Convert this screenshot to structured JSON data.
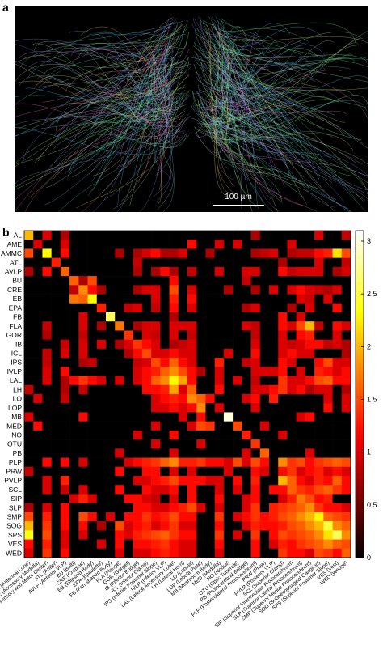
{
  "panel_a": {
    "label": "a",
    "scale_bar_label": "100 µm"
  },
  "chart_data": {
    "type": "heatmap",
    "panel_label": "b",
    "colormap": "hot",
    "y_categories": [
      "AL",
      "AME",
      "AMMC",
      "ATL",
      "AVLP",
      "BU",
      "CRE",
      "EB",
      "EPA",
      "FB",
      "FLA",
      "GOR",
      "IB",
      "ICL",
      "IPS",
      "IVLP",
      "LAL",
      "LH",
      "LO",
      "LOP",
      "MB",
      "MED",
      "NO",
      "OTU",
      "PB",
      "PLP",
      "PRW",
      "PVLP",
      "SCL",
      "SIP",
      "SLP",
      "SMP",
      "SOG",
      "SPS",
      "VES",
      "WED"
    ],
    "x_categories": [
      "AL (Antennal Lobe)",
      "AME (Accessory Medulla)",
      "AMMC (Antennal Mechanosensory and Motor Center)",
      "ATL (Antler)",
      "AVLP (Anterior VLP)",
      "BU (Bulb)",
      "CRE (Crepine)",
      "EB (Ellipsoid Body)",
      "EPA (Epaulette)",
      "FB (Fan-shaped Body)",
      "FLA (Flange)",
      "GOR (Gorget)",
      "IB (Inferior Bridge)",
      "ICL (Inferior Clamp)",
      "IPS (Inferior Posterior Slope)",
      "IVLP (Inferior VLP)",
      "LAL (Lateral Accessory Lobe)",
      "LH (Lateral Horn)",
      "LO (Lobula)",
      "LOP (Lobula Plate)",
      "MB (Mushroom Body)",
      "MED (Medulla)",
      "NO (Noduli)",
      "OTU (Optic Tubercle)",
      "PB (Protocerebral Bridge)",
      "PLP (Posterolateral Protocerebrum)",
      "PRW (Prow)",
      "PVLP (Posterior VLP)",
      "SCL (Superior Clamp)",
      "SIP (Superior Intermediate Protocerebrum)",
      "SLP (Superior Lateral Protocerebrum)",
      "SMP (Superior Medial Protocerebrum)",
      "SOG (Suboesophageal Ganglion)",
      "SPS (Superior Posterior Slope)",
      "VES (Vest)",
      "WED (Wedge)"
    ],
    "zlim": [
      0,
      3.1
    ],
    "zticks": [
      0,
      0.5,
      1,
      1.5,
      2,
      2.5,
      3
    ],
    "z": [
      [
        2.0,
        0,
        1.0,
        0,
        0.8,
        0,
        0,
        0,
        0,
        0,
        0,
        0,
        0,
        0,
        0,
        0,
        0,
        0,
        0,
        0,
        0,
        0,
        0,
        0,
        0,
        0.8,
        0,
        0,
        0,
        0,
        0,
        0,
        1.0,
        0,
        0,
        0.9
      ],
      [
        0,
        1.0,
        0,
        0,
        1.0,
        0,
        0,
        0,
        0,
        0,
        0,
        0,
        0,
        0,
        0,
        0,
        0,
        0,
        1.2,
        0,
        0,
        1.0,
        0,
        1.0,
        0,
        0,
        0,
        0,
        0,
        1.0,
        0,
        0,
        0,
        0,
        0,
        0
      ],
      [
        1.5,
        0,
        2.3,
        0,
        1.2,
        0,
        0,
        0,
        0,
        0,
        0.8,
        0,
        0.8,
        1.0,
        1.2,
        0.8,
        0.8,
        1.0,
        0,
        0,
        0.8,
        0,
        0,
        0,
        0,
        0.8,
        0.9,
        1.0,
        0,
        0.8,
        0.9,
        0.9,
        1.2,
        1.3,
        2.2,
        1.5
      ],
      [
        0,
        0,
        0,
        1.3,
        0,
        0,
        0,
        0,
        0,
        0,
        0,
        0,
        0.9,
        0,
        0,
        0,
        0,
        0,
        0,
        0,
        0,
        0,
        0,
        0,
        0,
        0,
        0,
        0,
        0.8,
        0,
        0,
        0,
        1.0,
        0,
        0,
        0.9
      ],
      [
        0.8,
        0,
        1.2,
        0,
        1.6,
        0,
        0,
        0,
        0,
        0,
        0,
        0,
        0.8,
        0,
        0.8,
        1.2,
        0.8,
        0,
        0.9,
        0,
        0,
        1.0,
        0,
        0,
        1.0,
        1.0,
        0,
        0,
        1.2,
        0.9,
        1.0,
        1.0,
        1.0,
        0,
        0.8,
        1.0
      ],
      [
        0,
        0,
        0,
        0,
        0,
        1.6,
        0.8,
        1.5,
        0,
        0,
        0,
        0,
        0,
        0,
        0,
        0,
        1.2,
        0,
        0,
        0,
        0,
        0,
        0,
        0,
        0.9,
        0,
        0,
        0,
        0,
        0,
        0,
        0,
        0,
        0,
        0,
        0
      ],
      [
        0,
        0,
        0,
        0,
        0,
        0.9,
        1.8,
        1.2,
        0.8,
        0,
        0,
        0,
        0.8,
        1.0,
        1.0,
        0,
        1.5,
        0,
        1.0,
        0,
        0,
        0,
        0.8,
        0,
        0,
        0.8,
        0,
        1.0,
        0,
        1.0,
        1.2,
        1.0,
        0.9,
        0.8,
        1.0,
        0
      ],
      [
        0,
        0,
        0,
        0,
        0,
        1.7,
        1.6,
        2.3,
        0,
        0,
        0,
        0,
        0,
        0,
        1.0,
        0,
        1.3,
        0,
        1.2,
        0,
        0,
        0,
        0,
        0,
        0,
        0,
        0,
        0,
        0,
        0,
        1.0,
        0.9,
        0,
        1.0,
        0,
        0
      ],
      [
        0,
        0,
        0,
        0,
        0,
        0,
        0,
        0,
        1.3,
        0,
        0,
        0.9,
        1.0,
        0,
        0.9,
        0,
        1.2,
        0,
        1.0,
        0,
        0,
        0,
        0,
        0,
        0.8,
        1.0,
        0,
        0,
        0,
        0.8,
        0,
        1.0,
        0,
        0,
        1.2,
        0
      ],
      [
        0,
        0,
        0,
        0,
        0,
        0,
        1.0,
        0,
        0,
        2.6,
        0,
        0,
        0,
        0,
        0,
        0,
        0.8,
        0,
        0,
        0,
        0,
        0,
        0,
        0,
        0,
        0,
        0,
        0,
        1.2,
        0,
        1.0,
        0,
        0,
        0,
        0,
        0
      ],
      [
        0,
        0,
        0.9,
        0,
        0,
        0,
        1.0,
        0,
        0.8,
        0,
        1.7,
        0,
        0.8,
        1.0,
        1.0,
        0,
        1.0,
        1.0,
        1.0,
        0,
        0,
        0,
        0,
        0,
        1.0,
        0.9,
        0,
        0,
        1.2,
        1.0,
        1.5,
        2.0,
        0.9,
        0,
        1.2,
        1.0
      ],
      [
        0,
        0,
        0.8,
        0,
        0,
        0,
        0.9,
        0,
        0,
        0,
        0,
        1.4,
        0,
        1.0,
        0.9,
        0,
        1.0,
        0,
        0.9,
        0,
        0,
        0,
        0,
        0,
        0,
        0.9,
        0,
        0,
        1.0,
        0,
        1.2,
        1.3,
        0,
        0,
        1.0,
        0
      ],
      [
        0,
        0,
        0,
        0,
        0.9,
        0,
        1.0,
        0,
        1.0,
        0,
        0.8,
        1.0,
        1.4,
        1.2,
        1.0,
        0,
        0.8,
        0.9,
        1.0,
        0,
        0,
        0,
        0,
        0,
        0,
        1.0,
        0,
        0,
        1.0,
        0.9,
        1.0,
        1.2,
        1.2,
        0.9,
        1.0,
        0.8
      ],
      [
        0,
        0,
        0.9,
        0,
        1.0,
        0,
        1.0,
        0,
        0,
        0,
        0,
        0.8,
        1.2,
        1.5,
        1.0,
        1.0,
        1.2,
        1.0,
        1.0,
        0,
        0,
        0,
        1.0,
        0,
        0,
        1.2,
        0,
        0,
        1.0,
        1.2,
        1.0,
        1.0,
        0,
        0,
        0,
        0.8
      ],
      [
        0,
        0,
        0.9,
        0,
        0,
        0,
        0.8,
        0.9,
        0,
        0,
        0,
        0,
        0.9,
        1.0,
        1.5,
        1.2,
        1.6,
        1.2,
        1.0,
        0,
        0,
        1.3,
        0,
        0,
        0.9,
        1.0,
        0,
        0,
        1.2,
        1.0,
        0,
        0,
        1.2,
        1.5,
        1.0,
        1.0
      ],
      [
        0,
        0,
        1.0,
        0,
        1.2,
        0,
        0,
        0,
        0,
        0,
        0,
        0,
        1.0,
        1.2,
        1.3,
        1.6,
        1.8,
        1.5,
        1.2,
        0.8,
        0,
        1.0,
        0,
        0,
        0,
        1.0,
        1.0,
        1.0,
        1.2,
        0,
        1.0,
        0,
        1.3,
        1.2,
        1.0,
        1.2
      ],
      [
        0,
        0,
        1.0,
        0,
        0.8,
        1.2,
        1.4,
        1.2,
        1.0,
        0,
        1.0,
        0,
        1.0,
        1.2,
        1.6,
        1.8,
        2.3,
        1.9,
        1.2,
        0,
        0,
        1.0,
        0,
        1.0,
        0,
        0.9,
        0,
        0,
        1.4,
        1.0,
        1.0,
        1.2,
        1.5,
        1.6,
        1.2,
        1.2
      ],
      [
        0.9,
        0,
        0,
        0,
        0.8,
        0,
        0.9,
        0,
        0,
        0,
        0,
        0,
        0,
        1.2,
        1.2,
        1.3,
        1.9,
        1.0,
        1.6,
        0,
        0,
        1.2,
        0,
        0,
        0,
        1.0,
        1.0,
        1.2,
        1.4,
        1.0,
        1.2,
        0.8,
        1.0,
        1.0,
        0,
        0.8
      ],
      [
        0,
        1.0,
        0,
        0,
        0.9,
        0,
        0,
        0,
        0,
        0,
        0,
        0,
        0,
        0,
        1.0,
        1.2,
        1.3,
        1.2,
        1.8,
        1.6,
        1.2,
        0,
        0,
        0,
        1.0,
        1.2,
        0,
        1.3,
        0,
        0,
        0,
        0,
        0,
        1.0,
        0,
        1.0
      ],
      [
        0,
        0,
        0,
        0,
        0,
        0,
        0,
        0,
        0,
        0,
        0,
        0,
        0,
        0,
        1.0,
        1.0,
        1.2,
        1.0,
        1.2,
        1.8,
        0,
        1.0,
        0,
        0,
        0,
        1.0,
        0,
        0,
        0,
        0,
        0,
        0,
        0,
        1.2,
        0,
        1.0
      ],
      [
        1.0,
        0,
        0,
        0,
        0,
        0,
        1.2,
        0,
        0,
        0,
        0,
        0,
        0,
        0,
        0,
        0,
        0,
        1.0,
        0,
        1.2,
        0,
        0,
        3.0,
        0,
        0,
        0,
        0,
        0,
        0,
        0,
        1.0,
        1.2,
        0,
        0,
        0,
        0
      ],
      [
        0,
        1.2,
        0,
        0,
        0,
        0,
        0,
        0,
        0,
        0,
        0,
        0,
        0,
        0,
        1.0,
        0,
        0,
        0,
        1.0,
        1.5,
        1.4,
        0,
        0,
        1.5,
        0,
        0,
        1.0,
        0,
        0,
        0,
        0,
        0,
        0,
        0,
        0,
        0
      ],
      [
        0,
        0,
        0,
        0,
        0,
        0,
        0,
        0,
        0,
        0,
        0,
        0,
        1.0,
        0,
        0,
        0,
        1.2,
        0,
        0,
        0,
        0,
        0,
        0,
        0,
        1.3,
        0,
        0,
        0,
        1.0,
        0,
        0,
        0,
        0,
        0,
        0,
        0
      ],
      [
        0,
        0,
        0,
        0,
        0,
        0,
        0,
        0,
        0,
        0,
        0,
        0,
        0,
        0,
        1.0,
        0,
        0,
        0,
        0,
        1.0,
        0,
        0,
        0,
        0,
        0,
        1.4,
        0,
        0,
        0,
        0,
        0,
        0,
        0,
        0,
        0,
        0
      ],
      [
        0,
        0,
        0,
        0,
        0,
        0,
        0,
        0,
        0,
        0,
        1.0,
        0,
        0,
        0,
        0,
        0,
        1.0,
        0,
        0,
        0,
        0,
        0,
        0,
        0,
        1.0,
        0,
        1.6,
        0,
        0,
        0,
        0,
        1.0,
        0,
        0,
        0,
        0
      ],
      [
        0,
        0,
        1.2,
        0,
        1.2,
        0,
        1.0,
        0,
        0,
        0,
        0,
        1.0,
        1.2,
        1.3,
        1.4,
        1.6,
        1.8,
        1.3,
        1.3,
        1.4,
        1.2,
        1.2,
        1.0,
        1.5,
        1.0,
        1.5,
        1.2,
        0,
        1.8,
        1.4,
        1.5,
        1.2,
        1.4,
        1.5,
        1.6,
        1.5
      ],
      [
        0.9,
        0,
        0,
        0,
        0,
        0,
        0,
        0,
        0,
        0,
        1.2,
        0,
        0,
        1.2,
        1.2,
        0,
        1.0,
        0,
        1.0,
        0,
        0,
        0,
        1.0,
        0,
        0,
        1.2,
        1.0,
        0,
        1.2,
        1.4,
        1.0,
        1.2,
        1.3,
        1.0,
        1.2,
        1.0
      ],
      [
        0,
        0,
        1.0,
        0,
        1.3,
        0,
        0,
        0,
        0,
        0,
        0,
        0,
        1.0,
        1.0,
        1.2,
        1.3,
        1.5,
        1.2,
        1.2,
        1.2,
        1.0,
        1.0,
        0,
        1.2,
        0,
        1.3,
        0,
        0,
        2.0,
        1.6,
        1.2,
        1.0,
        1.3,
        1.2,
        1.6,
        1.2
      ],
      [
        0,
        0,
        1.0,
        0,
        0.9,
        0,
        1.0,
        0,
        0,
        0,
        1.2,
        0,
        0,
        1.2,
        1.0,
        1.0,
        1.2,
        0,
        1.2,
        0,
        0,
        1.0,
        0,
        1.0,
        0,
        1.2,
        0,
        1.2,
        1.2,
        1.6,
        1.4,
        1.3,
        1.5,
        1.6,
        1.4,
        1.2
      ],
      [
        0,
        0,
        0,
        0,
        0,
        1.0,
        1.3,
        1.0,
        0,
        0,
        0,
        1.2,
        1.2,
        1.0,
        0.9,
        0,
        1.0,
        0,
        1.2,
        0,
        0,
        1.2,
        0,
        0,
        1.0,
        1.2,
        0,
        0,
        1.0,
        1.3,
        1.7,
        1.5,
        1.2,
        1.3,
        0,
        0
      ],
      [
        0.8,
        0,
        1.0,
        0,
        1.2,
        0,
        0,
        0,
        0,
        0,
        0,
        0,
        1.2,
        1.2,
        1.0,
        1.0,
        1.2,
        1.3,
        1.5,
        1.0,
        0,
        1.0,
        0,
        0,
        1.0,
        1.4,
        0,
        1.3,
        1.4,
        1.5,
        1.6,
        1.8,
        1.4,
        1.2,
        1.2,
        1.0
      ],
      [
        1.5,
        0,
        1.3,
        0,
        1.2,
        0,
        1.5,
        1.2,
        0,
        1.0,
        0,
        1.2,
        1.2,
        1.4,
        1.2,
        1.3,
        1.5,
        1.2,
        1.2,
        0,
        0,
        1.4,
        0,
        1.0,
        1.2,
        1.4,
        1.2,
        1.3,
        1.5,
        1.6,
        1.8,
        2.0,
        2.3,
        1.6,
        1.5,
        1.4
      ],
      [
        2.0,
        0,
        1.4,
        0,
        1.2,
        0,
        1.2,
        0,
        0.8,
        0,
        1.5,
        1.0,
        1.2,
        1.3,
        1.0,
        1.2,
        1.4,
        1.0,
        1.0,
        0,
        0,
        1.2,
        0,
        0,
        1.0,
        1.3,
        1.2,
        1.2,
        1.3,
        1.5,
        1.6,
        1.8,
        2.0,
        2.5,
        1.8,
        1.6
      ],
      [
        2.4,
        0,
        1.5,
        0,
        1.0,
        0,
        1.0,
        0,
        0,
        0,
        1.2,
        1.0,
        1.3,
        1.4,
        1.5,
        1.6,
        1.4,
        1.2,
        1.2,
        0,
        0,
        1.4,
        0,
        1.0,
        0,
        1.4,
        0,
        1.2,
        1.5,
        1.4,
        1.5,
        1.6,
        1.8,
        2.2,
        2.6,
        1.8
      ],
      [
        1.2,
        0,
        1.3,
        0,
        1.0,
        0,
        0,
        0,
        1.0,
        0,
        1.2,
        0,
        1.2,
        1.2,
        1.3,
        1.4,
        1.2,
        1.0,
        1.0,
        0,
        0,
        1.2,
        0,
        0,
        0,
        1.2,
        0,
        1.0,
        1.3,
        1.2,
        1.4,
        1.5,
        1.6,
        1.8,
        1.6,
        1.5
      ],
      [
        1.0,
        0,
        1.4,
        0,
        1.2,
        0,
        0,
        0,
        0,
        0,
        1.0,
        0,
        1.0,
        1.0,
        1.2,
        1.3,
        1.2,
        1.0,
        1.0,
        0,
        0,
        1.0,
        0,
        0,
        0,
        1.2,
        0,
        0,
        1.4,
        1.2,
        1.2,
        1.0,
        1.5,
        1.4,
        1.2,
        1.6
      ]
    ]
  }
}
